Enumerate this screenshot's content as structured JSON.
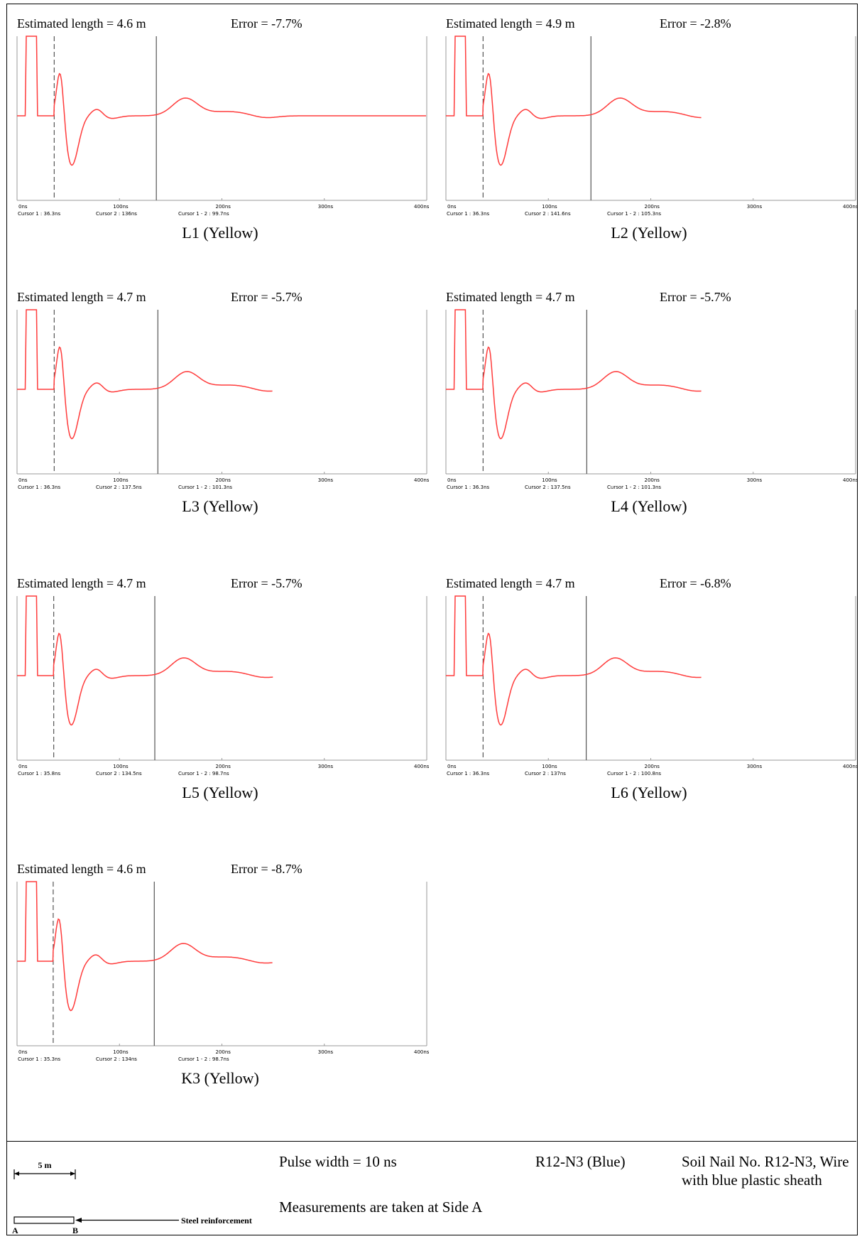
{
  "chart_data": [
    {
      "type": "line",
      "title": "L1 (Yellow)",
      "estimated_length": "Estimated length = 4.6 m",
      "error": "Error = -7.7%",
      "x_ticks": [
        "0ns",
        "100ns",
        "200ns",
        "300ns",
        "400ns"
      ],
      "cursor1": "Cursor 1 : 36.3ns",
      "cursor2": "Cursor 2 : 136ns",
      "delta": "Cursor 1 - 2 : 99.7ns",
      "cursor1_ns": 36.3,
      "cursor2_ns": 136,
      "trace_end_ns": 400
    },
    {
      "type": "line",
      "title": "L2 (Yellow)",
      "estimated_length": "Estimated length = 4.9 m",
      "error": "Error = -2.8%",
      "x_ticks": [
        "0ns",
        "100ns",
        "200ns",
        "300ns",
        "400ns"
      ],
      "cursor1": "Cursor 1 : 36.3ns",
      "cursor2": "Cursor 2 : 141.6ns",
      "delta": "Cursor 1 - 2 : 105.3ns",
      "cursor1_ns": 36.3,
      "cursor2_ns": 141.6,
      "trace_end_ns": 250
    },
    {
      "type": "line",
      "title": "L3 (Yellow)",
      "estimated_length": "Estimated length = 4.7 m",
      "error": "Error = -5.7%",
      "x_ticks": [
        "0ns",
        "100ns",
        "200ns",
        "300ns",
        "400ns"
      ],
      "cursor1": "Cursor 1 : 36.3ns",
      "cursor2": "Cursor 2 : 137.5ns",
      "delta": "Cursor 1 - 2 : 101.3ns",
      "cursor1_ns": 36.3,
      "cursor2_ns": 137.5,
      "trace_end_ns": 250
    },
    {
      "type": "line",
      "title": "L4 (Yellow)",
      "estimated_length": "Estimated length = 4.7 m",
      "error": "Error = -5.7%",
      "x_ticks": [
        "0ns",
        "100ns",
        "200ns",
        "300ns",
        "400ns"
      ],
      "cursor1": "Cursor 1 : 36.3ns",
      "cursor2": "Cursor 2 : 137.5ns",
      "delta": "Cursor 1 - 2 : 101.3ns",
      "cursor1_ns": 36.3,
      "cursor2_ns": 137.5,
      "trace_end_ns": 250
    },
    {
      "type": "line",
      "title": "L5 (Yellow)",
      "estimated_length": "Estimated length = 4.7 m",
      "error": "Error = -5.7%",
      "x_ticks": [
        "0ns",
        "100ns",
        "200ns",
        "300ns",
        "400ns"
      ],
      "cursor1": "Cursor 1 : 35.8ns",
      "cursor2": "Cursor 2 : 134.5ns",
      "delta": "Cursor 1 - 2 : 98.7ns",
      "cursor1_ns": 35.8,
      "cursor2_ns": 134.5,
      "trace_end_ns": 250
    },
    {
      "type": "line",
      "title": "L6 (Yellow)",
      "estimated_length": "Estimated length = 4.7 m",
      "error": "Error = -6.8%",
      "x_ticks": [
        "0ns",
        "100ns",
        "200ns",
        "300ns",
        "400ns"
      ],
      "cursor1": "Cursor 1 : 36.3ns",
      "cursor2": "Cursor 2 : 137ns",
      "delta": "Cursor 1 - 2 : 100.8ns",
      "cursor1_ns": 36.3,
      "cursor2_ns": 137,
      "trace_end_ns": 250
    },
    {
      "type": "line",
      "title": "K3 (Yellow)",
      "estimated_length": "Estimated length = 4.6 m",
      "error": "Error = -8.7%",
      "x_ticks": [
        "0ns",
        "100ns",
        "200ns",
        "300ns",
        "400ns"
      ],
      "cursor1": "Cursor 1 : 35.3ns",
      "cursor2": "Cursor 2 : 134ns",
      "delta": "Cursor 1 - 2 : 98.7ns",
      "cursor1_ns": 35.3,
      "cursor2_ns": 134,
      "trace_end_ns": 250
    }
  ],
  "colors": {
    "trace": "#ff3b3b",
    "axis": "#9a9a9a",
    "cursor": "#555555"
  },
  "footer": {
    "scale_label": "5 m",
    "end_a": "A",
    "end_b": "B",
    "reinforcement_label": "Steel reinforcement",
    "pulse_width": "Pulse width = 10 ns",
    "measurement_note": "Measurements are taken at Side A",
    "nail_code": "R12-N3 (Blue)",
    "nail_description": "Soil Nail No. R12-N3, Wire with blue plastic sheath"
  }
}
